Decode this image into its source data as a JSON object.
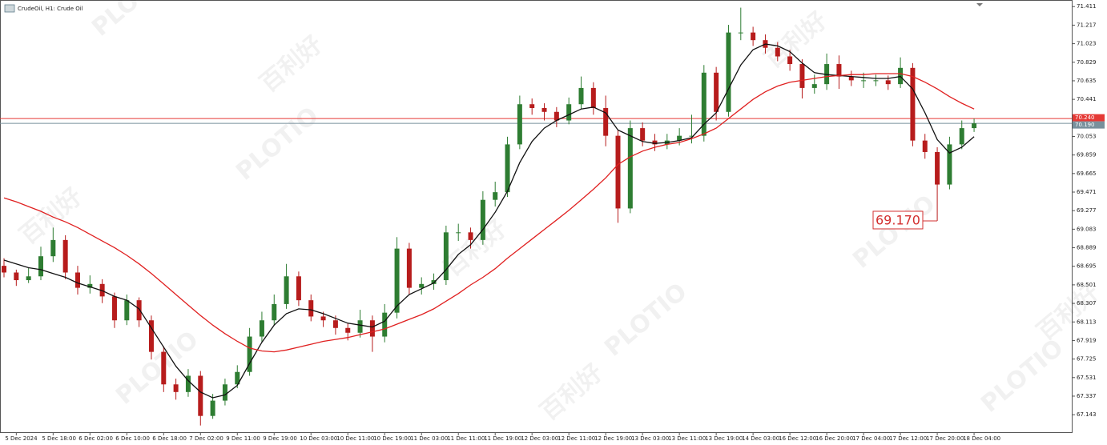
{
  "chart_data": {
    "type": "candlestick",
    "title": "CrudeOil, H1:  Crude Oil",
    "watermark": [
      "PLOTIO",
      "百利好"
    ],
    "up_color": "#2e7d32",
    "down_color": "#b71c1c",
    "ylim": [
      66.96,
      71.48
    ],
    "yticks": [
      71.411,
      71.217,
      71.023,
      70.829,
      70.635,
      70.441,
      70.053,
      69.859,
      69.665,
      69.471,
      69.277,
      69.083,
      68.889,
      68.695,
      68.501,
      68.307,
      68.113,
      67.919,
      67.725,
      67.531,
      67.337,
      67.143
    ],
    "categories": [
      null,
      "5 Dec 2024",
      null,
      null,
      "5 Dec 18:00",
      null,
      null,
      "6 Dec 02:00",
      null,
      null,
      "6 Dec 10:00",
      null,
      null,
      "6 Dec 18:00",
      null,
      null,
      "7 Dec 02:00",
      null,
      null,
      "9 Dec 11:00",
      null,
      null,
      "9 Dec 19:00",
      null,
      null,
      "10 Dec 03:00",
      null,
      null,
      "10 Dec 11:00",
      null,
      null,
      "10 Dec 19:00",
      null,
      null,
      "11 Dec 03:00",
      null,
      null,
      "11 Dec 11:00",
      null,
      null,
      "11 Dec 19:00",
      null,
      null,
      "12 Dec 03:00",
      null,
      null,
      "12 Dec 11:00",
      null,
      null,
      "12 Dec 19:00",
      null,
      null,
      "13 Dec 03:00",
      null,
      null,
      "13 Dec 11:00",
      null,
      null,
      "13 Dec 19:00",
      null,
      null,
      "14 Dec 03:00",
      null,
      null,
      "16 Dec 12:00",
      null,
      null,
      "16 Dec 20:00",
      null,
      null,
      "17 Dec 04:00",
      null,
      null,
      "17 Dec 12:00",
      null,
      null,
      "17 Dec 20:00",
      null,
      null,
      "18 Dec 04:00"
    ],
    "ohlc": [
      [
        68.7,
        68.78,
        68.58,
        68.63
      ],
      [
        68.63,
        68.66,
        68.49,
        68.55
      ],
      [
        68.55,
        68.68,
        68.52,
        68.59
      ],
      [
        68.59,
        68.9,
        68.55,
        68.8
      ],
      [
        68.8,
        69.1,
        68.74,
        68.97
      ],
      [
        68.97,
        69.02,
        68.56,
        68.63
      ],
      [
        68.63,
        68.7,
        68.4,
        68.47
      ],
      [
        68.47,
        68.6,
        68.41,
        68.51
      ],
      [
        68.51,
        68.56,
        68.31,
        68.38
      ],
      [
        68.38,
        68.42,
        68.05,
        68.13
      ],
      [
        68.13,
        68.4,
        68.08,
        68.34
      ],
      [
        68.34,
        68.37,
        68.06,
        68.13
      ],
      [
        68.13,
        68.18,
        67.72,
        67.8
      ],
      [
        67.8,
        67.86,
        67.38,
        67.46
      ],
      [
        67.46,
        67.52,
        67.3,
        67.38
      ],
      [
        67.38,
        67.62,
        67.33,
        67.55
      ],
      [
        67.55,
        67.6,
        67.03,
        67.13
      ],
      [
        67.13,
        67.36,
        67.1,
        67.29
      ],
      [
        67.29,
        67.52,
        67.24,
        67.46
      ],
      [
        67.46,
        67.66,
        67.42,
        67.59
      ],
      [
        67.59,
        68.05,
        67.55,
        67.96
      ],
      [
        67.96,
        68.22,
        67.9,
        68.13
      ],
      [
        68.13,
        68.4,
        68.08,
        68.3
      ],
      [
        68.3,
        68.72,
        68.25,
        68.59
      ],
      [
        68.59,
        68.64,
        68.28,
        68.34
      ],
      [
        68.34,
        68.4,
        68.12,
        68.17
      ],
      [
        68.17,
        68.22,
        68.06,
        68.13
      ],
      [
        68.13,
        68.18,
        67.98,
        68.05
      ],
      [
        68.05,
        68.1,
        67.92,
        68.0
      ],
      [
        68.0,
        68.24,
        67.95,
        68.13
      ],
      [
        68.13,
        68.18,
        67.8,
        67.96
      ],
      [
        67.96,
        68.3,
        67.9,
        68.21
      ],
      [
        68.21,
        69.0,
        68.15,
        68.88
      ],
      [
        68.88,
        68.94,
        68.4,
        68.47
      ],
      [
        68.47,
        68.58,
        68.4,
        68.51
      ],
      [
        68.51,
        68.62,
        68.45,
        68.55
      ],
      [
        68.55,
        69.12,
        68.5,
        69.05
      ],
      [
        69.05,
        69.14,
        68.96,
        69.05
      ],
      [
        69.05,
        69.1,
        68.88,
        68.97
      ],
      [
        68.97,
        69.48,
        68.92,
        69.39
      ],
      [
        69.39,
        69.58,
        69.32,
        69.47
      ],
      [
        69.47,
        70.05,
        69.42,
        69.97
      ],
      [
        69.97,
        70.48,
        69.92,
        70.39
      ],
      [
        70.39,
        70.45,
        70.28,
        70.35
      ],
      [
        70.35,
        70.4,
        70.22,
        70.31
      ],
      [
        70.31,
        70.36,
        70.15,
        70.22
      ],
      [
        70.22,
        70.46,
        70.18,
        70.39
      ],
      [
        70.39,
        70.68,
        70.34,
        70.56
      ],
      [
        70.56,
        70.62,
        70.28,
        70.35
      ],
      [
        70.35,
        70.48,
        69.95,
        70.06
      ],
      [
        70.06,
        70.12,
        69.15,
        69.3
      ],
      [
        69.3,
        70.22,
        69.25,
        70.14
      ],
      [
        70.14,
        70.2,
        69.95,
        70.01
      ],
      [
        70.01,
        70.08,
        69.9,
        69.97
      ],
      [
        69.97,
        70.08,
        69.92,
        70.01
      ],
      [
        70.01,
        70.14,
        69.96,
        70.06
      ],
      [
        70.06,
        70.28,
        69.98,
        70.06
      ],
      [
        70.06,
        70.8,
        70.0,
        70.72
      ],
      [
        70.72,
        70.78,
        70.22,
        70.31
      ],
      [
        70.31,
        71.22,
        70.26,
        71.14
      ],
      [
        71.14,
        71.4,
        71.06,
        71.14
      ],
      [
        71.14,
        71.2,
        71.0,
        71.06
      ],
      [
        71.06,
        71.12,
        70.92,
        70.98
      ],
      [
        70.98,
        71.04,
        70.84,
        70.89
      ],
      [
        70.89,
        70.96,
        70.74,
        70.81
      ],
      [
        70.81,
        70.86,
        70.45,
        70.56
      ],
      [
        70.56,
        70.7,
        70.5,
        70.6
      ],
      [
        70.6,
        70.92,
        70.54,
        70.81
      ],
      [
        70.81,
        70.9,
        70.55,
        70.68
      ],
      [
        70.68,
        70.74,
        70.58,
        70.64
      ],
      [
        70.64,
        70.72,
        70.56,
        70.64
      ],
      [
        70.64,
        70.7,
        70.58,
        70.64
      ],
      [
        70.64,
        70.69,
        70.54,
        70.6
      ],
      [
        70.6,
        70.88,
        70.56,
        70.77
      ],
      [
        70.77,
        70.82,
        69.95,
        70.01
      ],
      [
        70.01,
        70.08,
        69.82,
        69.89
      ],
      [
        69.89,
        69.94,
        69.17,
        69.55
      ],
      [
        69.55,
        70.05,
        69.5,
        69.97
      ],
      [
        69.97,
        70.22,
        69.92,
        70.14
      ],
      [
        70.14,
        70.24,
        70.1,
        70.19
      ]
    ],
    "lines": [
      {
        "color": "#111111",
        "values": [
          68.76,
          68.72,
          68.68,
          68.66,
          68.62,
          68.58,
          68.52,
          68.48,
          68.44,
          68.38,
          68.34,
          68.25,
          68.05,
          67.85,
          67.65,
          67.5,
          67.38,
          67.32,
          67.35,
          67.45,
          67.68,
          67.9,
          68.08,
          68.2,
          68.25,
          68.24,
          68.2,
          68.15,
          68.1,
          68.08,
          68.06,
          68.12,
          68.28,
          68.4,
          68.46,
          68.52,
          68.66,
          68.82,
          68.92,
          69.08,
          69.26,
          69.48,
          69.78,
          70.0,
          70.14,
          70.22,
          70.28,
          70.34,
          70.36,
          70.3,
          70.12,
          70.06,
          70.0,
          69.98,
          69.99,
          70.01,
          70.04,
          70.18,
          70.3,
          70.55,
          70.8,
          70.96,
          71.02,
          71.0,
          70.94,
          70.82,
          70.72,
          70.7,
          70.69,
          70.68,
          70.67,
          70.66,
          70.66,
          70.68,
          70.55,
          70.3,
          70.02,
          69.88,
          69.94,
          70.05
        ]
      },
      {
        "color": "#e02020",
        "values": [
          69.41,
          69.37,
          69.32,
          69.27,
          69.21,
          69.16,
          69.1,
          69.03,
          68.96,
          68.89,
          68.81,
          68.72,
          68.62,
          68.51,
          68.4,
          68.29,
          68.18,
          68.08,
          67.99,
          67.91,
          67.84,
          67.81,
          67.8,
          67.82,
          67.85,
          67.88,
          67.91,
          67.93,
          67.95,
          67.98,
          68.01,
          68.04,
          68.09,
          68.14,
          68.19,
          68.25,
          68.33,
          68.41,
          68.5,
          68.58,
          68.67,
          68.78,
          68.88,
          68.98,
          69.08,
          69.18,
          69.28,
          69.39,
          69.5,
          69.62,
          69.76,
          69.84,
          69.9,
          69.94,
          69.97,
          69.99,
          70.03,
          70.08,
          70.14,
          70.24,
          70.34,
          70.44,
          70.52,
          70.58,
          70.62,
          70.64,
          70.66,
          70.68,
          70.69,
          70.7,
          70.7,
          70.71,
          70.71,
          70.71,
          70.68,
          70.62,
          70.55,
          70.47,
          70.4,
          70.34
        ]
      }
    ],
    "price_lines": [
      {
        "value": 70.24,
        "label": "70.240",
        "color": "#e53935"
      },
      {
        "value": 70.19,
        "label": "70.190",
        "color": "#78909c"
      }
    ],
    "annotation": {
      "value": 69.17,
      "label": "69.170",
      "color": "#d32f2f"
    }
  }
}
